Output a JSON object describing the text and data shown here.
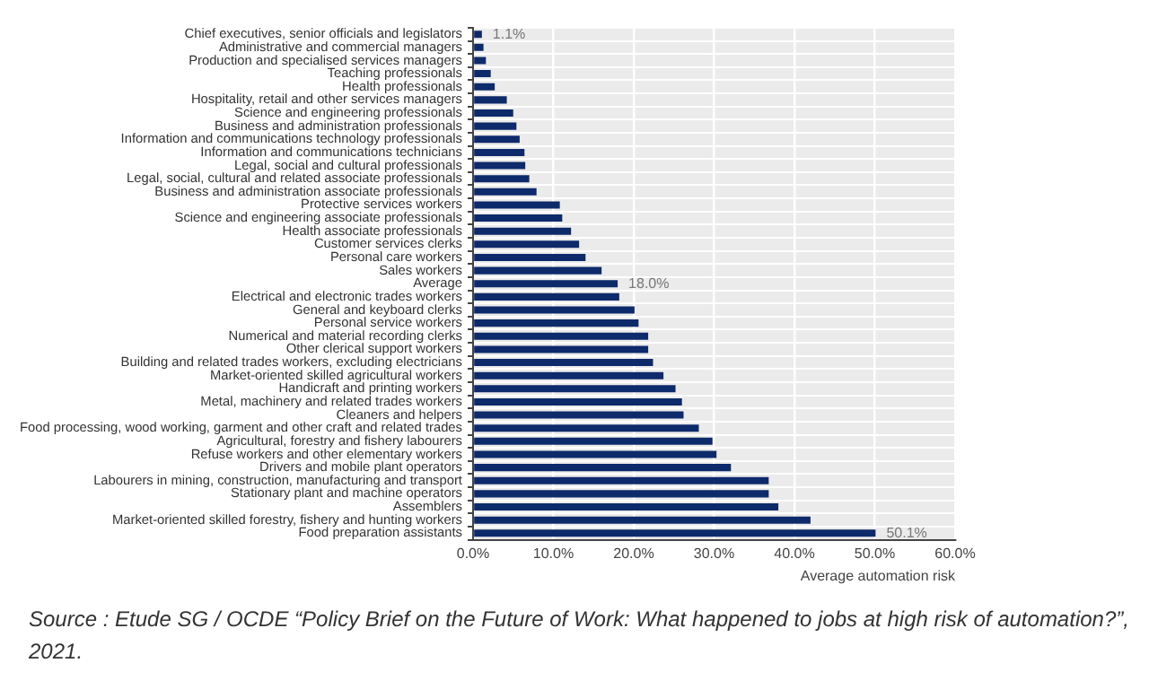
{
  "chart_data": {
    "type": "bar",
    "orientation": "horizontal",
    "xlabel": "Average automation risk",
    "categories": [
      "Chief executives, senior officials and legislators",
      "Administrative and commercial managers",
      "Production and specialised services managers",
      "Teaching professionals",
      "Health professionals",
      "Hospitality, retail and other services managers",
      "Science and engineering professionals",
      "Business and administration professionals",
      "Information and communications technology professionals",
      "Information and communications technicians",
      "Legal, social and cultural professionals",
      "Legal, social, cultural and related associate professionals",
      "Business and administration associate professionals",
      "Protective services workers",
      "Science and engineering associate professionals",
      "Health associate professionals",
      "Customer services clerks",
      "Personal care workers",
      "Sales workers",
      "Average",
      "Electrical and electronic trades workers",
      "General and keyboard clerks",
      "Personal service workers",
      "Numerical and material recording clerks",
      "Other clerical support workers",
      "Building and related trades workers, excluding electricians",
      "Market-oriented skilled agricultural workers",
      "Handicraft and printing workers",
      "Metal, machinery and related trades workers",
      "Cleaners and helpers",
      "Food processing, wood working, garment and other craft and related trades",
      "Agricultural, forestry and fishery labourers",
      "Refuse workers and other elementary workers",
      "Drivers and mobile plant operators",
      "Labourers in mining, construction, manufacturing and transport",
      "Stationary plant and machine operators",
      "Assemblers",
      "Market-oriented skilled forestry, fishery and hunting workers",
      "Food preparation assistants"
    ],
    "values": [
      1.1,
      1.3,
      1.6,
      2.2,
      2.7,
      4.2,
      5.0,
      5.4,
      5.8,
      6.4,
      6.5,
      7.0,
      7.9,
      10.8,
      11.1,
      12.2,
      13.2,
      14.0,
      16.0,
      18.0,
      18.2,
      20.1,
      20.6,
      21.8,
      21.8,
      22.4,
      23.7,
      25.2,
      26.0,
      26.2,
      28.1,
      29.8,
      30.3,
      32.1,
      36.8,
      36.8,
      38.0,
      42.0,
      50.1
    ],
    "value_labels": [
      "1.1%",
      null,
      null,
      null,
      null,
      null,
      null,
      null,
      null,
      null,
      null,
      null,
      null,
      null,
      null,
      null,
      null,
      null,
      null,
      "18.0%",
      null,
      null,
      null,
      null,
      null,
      null,
      null,
      null,
      null,
      null,
      null,
      null,
      null,
      null,
      null,
      null,
      null,
      null,
      "50.1%"
    ],
    "color": "#0d2a6b",
    "xlim": [
      0,
      60
    ],
    "xticks": [
      {
        "value": 0,
        "label": "0.0%"
      },
      {
        "value": 10,
        "label": "10.0%"
      },
      {
        "value": 20,
        "label": "20.0%"
      },
      {
        "value": 30,
        "label": "30.0%"
      },
      {
        "value": 40,
        "label": "40.0%"
      },
      {
        "value": 50,
        "label": "50.0%"
      },
      {
        "value": 60,
        "label": "60.0%"
      }
    ],
    "grid": true,
    "annotations": [
      "Source : Etude SG / OCDE “Policy Brief on the Future of Work: What happened to jobs at high risk of automation?”, 2021."
    ]
  }
}
